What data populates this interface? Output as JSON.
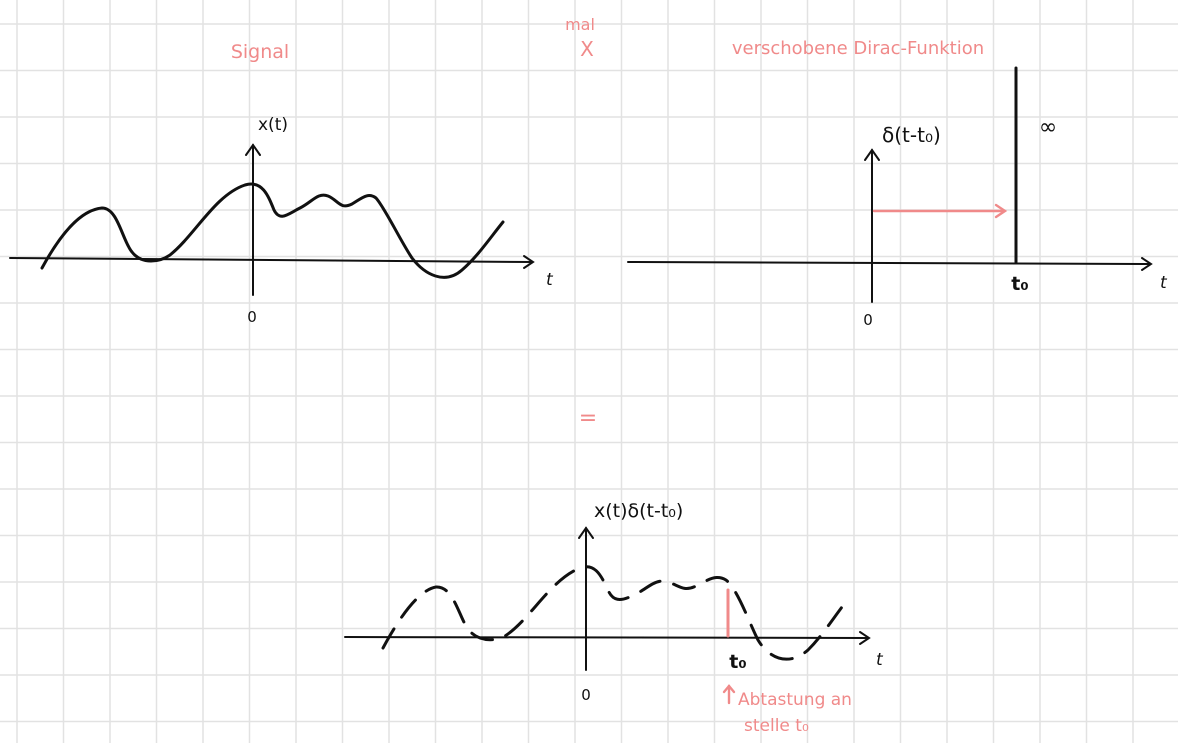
{
  "multiply": {
    "word": "mal",
    "symbol": "X"
  },
  "equals": "=",
  "panel_signal": {
    "title": "Signal",
    "ylabel": "x(t)",
    "xlabel": "t",
    "origin": "0"
  },
  "panel_dirac": {
    "title": "verschobene Dirac-Funktion",
    "ylabel": "δ(t-t₀)",
    "xlabel": "t",
    "origin": "0",
    "shift_label": "t₀",
    "impulse_label": "∞"
  },
  "panel_product": {
    "ylabel": "x(t)δ(t-t₀)",
    "xlabel": "t",
    "origin": "0",
    "shift_label": "t₀",
    "note_line1": "Abtastung an",
    "note_line2": "stelle t₀"
  },
  "colors": {
    "accent": "#f08a8a",
    "ink": "#111111",
    "grid": "#e2e2e2"
  }
}
